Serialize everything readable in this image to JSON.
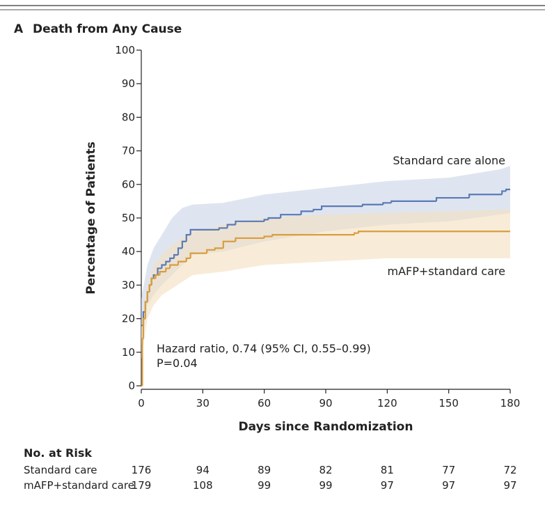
{
  "chart_data": {
    "type": "step",
    "panel_label": "A",
    "title": "Death from Any Cause",
    "x_label": "Days since Randomization",
    "y_label": "Percentage of Patients",
    "xlim": [
      0,
      180
    ],
    "xticks": [
      0,
      30,
      60,
      90,
      120,
      150,
      180
    ],
    "ylim": [
      0,
      100
    ],
    "yticks": [
      0,
      10,
      20,
      30,
      40,
      50,
      60,
      70,
      80,
      90,
      100
    ],
    "annotations": [
      "Hazard ratio, 0.74 (95% CI, 0.55–0.99)",
      "P=0.04"
    ],
    "series": [
      {
        "name": "Standard care alone",
        "color": "#5a7ab6",
        "band_color": "#c9d4e6",
        "x": [
          0,
          1,
          2,
          3,
          4,
          5,
          6,
          8,
          10,
          12,
          14,
          16,
          18,
          20,
          22,
          24,
          38,
          42,
          46,
          60,
          62,
          68,
          78,
          84,
          88,
          108,
          118,
          122,
          144,
          160,
          176,
          178
        ],
        "y": [
          18,
          22,
          25,
          28,
          30,
          32,
          33,
          35,
          36,
          37,
          38,
          39,
          41,
          43,
          45,
          46.5,
          47,
          48,
          49,
          49.5,
          50,
          51,
          52,
          52.5,
          53.5,
          54,
          54.5,
          55,
          56,
          57,
          58,
          58.5
        ],
        "ci": {
          "x": [
            0,
            3,
            6,
            10,
            15,
            20,
            25,
            40,
            60,
            90,
            120,
            150,
            175,
            180
          ],
          "upper": [
            26,
            36,
            41,
            45,
            50,
            53,
            54,
            54.5,
            57,
            59,
            61,
            62,
            64.5,
            65.5
          ],
          "lower": [
            12,
            24,
            27,
            30,
            33,
            36,
            39,
            40,
            43,
            46,
            48,
            49,
            51,
            51.5
          ]
        }
      },
      {
        "name": "mAFP+standard care",
        "color": "#d99d3e",
        "band_color": "#f3dfbf",
        "x": [
          0,
          0.5,
          1,
          2,
          3,
          4,
          5,
          7,
          9,
          12,
          14,
          18,
          22,
          24,
          32,
          36,
          40,
          46,
          60,
          64,
          104,
          106
        ],
        "y": [
          0,
          14,
          20,
          25,
          28,
          30,
          32,
          33,
          34,
          35,
          36,
          37,
          38,
          39.5,
          40.5,
          41,
          43,
          44,
          44.5,
          45,
          45.5,
          46
        ],
        "ci": {
          "x": [
            0,
            3,
            6,
            10,
            15,
            20,
            25,
            40,
            60,
            90,
            120,
            150,
            175,
            180
          ],
          "upper": [
            18,
            30,
            36,
            39,
            42,
            44,
            46,
            48,
            50,
            51,
            51.5,
            52,
            52.5,
            52.5
          ],
          "lower": [
            8,
            20,
            24,
            27,
            29,
            31,
            33,
            34,
            36,
            37,
            38,
            38,
            38,
            38
          ]
        }
      }
    ],
    "at_risk": {
      "title": "No. at Risk",
      "rows": [
        {
          "label": "Standard care",
          "values": [
            176,
            94,
            89,
            82,
            81,
            77,
            72
          ]
        },
        {
          "label": "mAFP+standard care",
          "values": [
            179,
            108,
            99,
            99,
            97,
            97,
            97
          ]
        }
      ]
    }
  }
}
